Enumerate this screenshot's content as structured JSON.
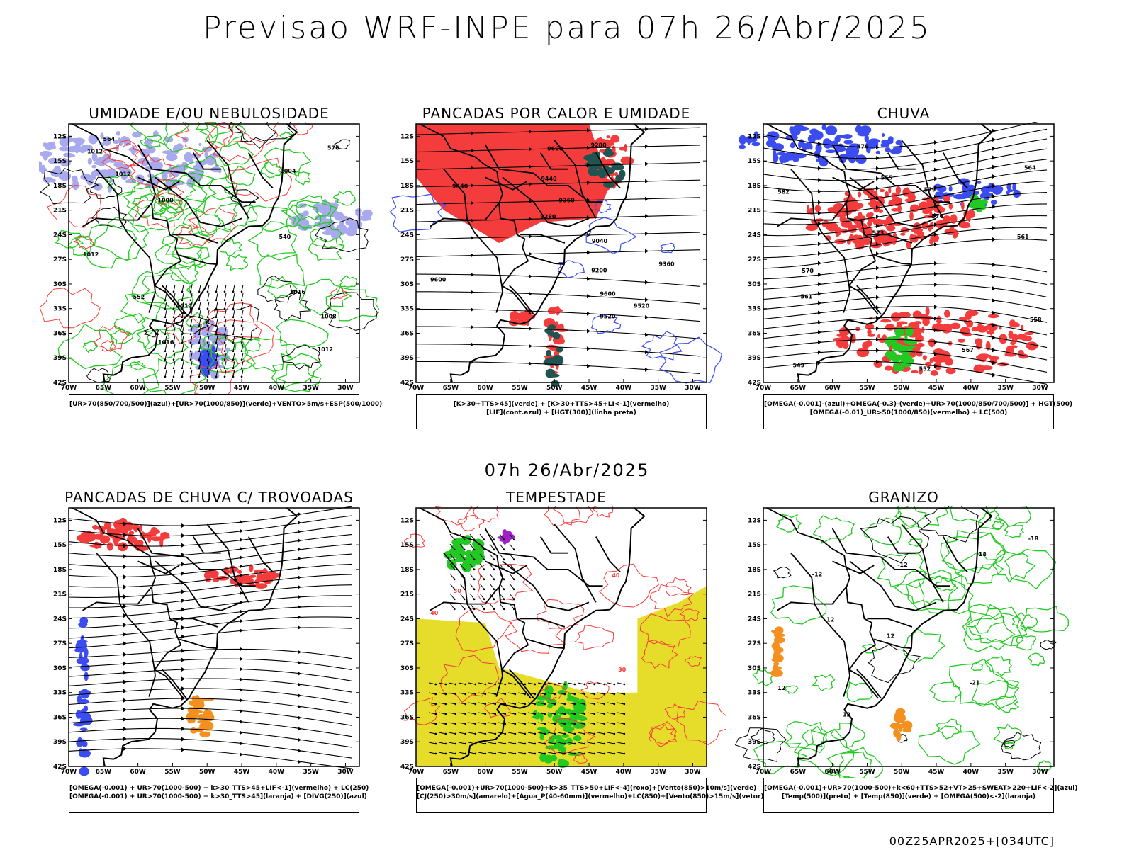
{
  "header": {
    "title": "Previsao WRF-INPE  para 07h 26/Abr/2025"
  },
  "middle_date": "07h 26/Abr/2025",
  "footer": "00Z25APR2025+[034UTC]",
  "axes": {
    "lat_labels": [
      "12S",
      "15S",
      "18S",
      "21S",
      "24S",
      "27S",
      "30S",
      "33S",
      "36S",
      "39S",
      "42S"
    ],
    "lon_labels": [
      "70W",
      "65W",
      "60W",
      "55W",
      "50W",
      "45W",
      "40W",
      "35W",
      "30W"
    ]
  },
  "colors": {
    "blue": "#3b4cf0",
    "lavender": "#a9a9ee",
    "green": "#23c923",
    "red": "#f53c3c",
    "darkteal": "#1f5450",
    "yellow": "#e6dc2a",
    "orange": "#f39020",
    "purple": "#a020c8"
  },
  "panels": [
    {
      "id": "umidade",
      "title": "UMIDADE E/OU NEBULOSIDADE",
      "legend": [
        "[UR>70(850/700/500)](azul)+[UR>70(1000/850)](verde)+VENTO>5m/s+ESP(500/1000)"
      ],
      "contour_labels": [
        "1012",
        "1012",
        "1012",
        "1012",
        "1008",
        "1016",
        "1016",
        "1012",
        "1004",
        "1000",
        "576",
        "552",
        "564",
        "540"
      ]
    },
    {
      "id": "pancadas-calor",
      "title": "PANCADAS POR CALOR E UMIDADE",
      "legend": [
        "[K>30+TTS>45](verde) + [K>30+TTS>45+LI<-1](vermelho)",
        "[LIF](cont.azul) + [HGT(300)](linha preta)"
      ],
      "contour_labels": [
        "9600",
        "9600",
        "9600",
        "9520",
        "9520",
        "9440",
        "9440",
        "9360",
        "9360",
        "9280",
        "9280",
        "9200",
        "9040"
      ]
    },
    {
      "id": "chuva",
      "title": "CHUVA",
      "legend": [
        "[OMEGA(-0.001)-(azul)+OMEGA(-0.3)-(verde)+UR>70(1000/850/700/500)] + HGT(500)",
        "[OMEGA(-0.01)_UR>50(1000/850)(vermelho) + LC(500)"
      ],
      "contour_labels": [
        "582",
        "579",
        "576",
        "576",
        "573",
        "570",
        "567",
        "564",
        "561",
        "561",
        "558",
        "555",
        "552",
        "549"
      ]
    },
    {
      "id": "pancadas-trovoadas",
      "title": "PANCADAS DE CHUVA C/ TROVOADAS",
      "legend": [
        "[OMEGA(-0.001) + UR>70(1000-500) + k>30_TTS>45+LIF<-1](vermelho) + LC(250)",
        "[OMEGA(-0.001) + UR>70(1000-500) + k>30_TTS>45](laranja) + [DIVG(250)](azul)"
      ]
    },
    {
      "id": "tempestade",
      "title": "TEMPESTADE",
      "legend": [
        "[OMEGA(-0.001)+UR>70(1000-500)+k>35_TTS>50+LIF<-4](roxo)+[Vento(850)>10m/s](verde)",
        "[CJ(250)>30m/s](amarelo)+[Agua_P(40-60mm)](vermelho)+LC(850)+[Vento(850)>15m/s](vetor)"
      ],
      "contour_labels": [
        "40",
        "40",
        "30",
        "30"
      ]
    },
    {
      "id": "granizo",
      "title": "GRANIZO",
      "legend": [
        "[OMEGA(-0.001)+UR>70(1000-500)+k<60+TTS>52+VT>25+SWEAT>220+LIF<-2](azul)",
        "[Temp(500)](preto) + [Temp(850)](verde) + [OMEGA(500)<-2](laranja)"
      ],
      "contour_labels": [
        "12",
        "12",
        "12",
        "12",
        "-12",
        "-12",
        "-18",
        "-18",
        "-21"
      ]
    }
  ]
}
